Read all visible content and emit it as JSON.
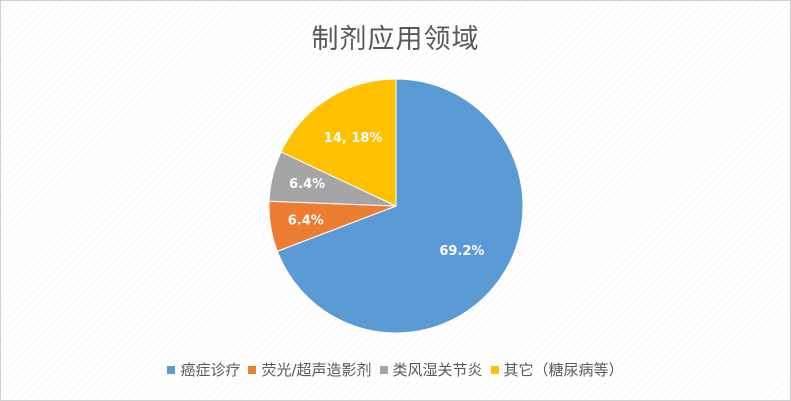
{
  "chart_data": {
    "type": "pie",
    "title": "制剂应用领域",
    "start_angle_deg": 0,
    "direction": "clockwise",
    "legend_position": "bottom",
    "slices": [
      {
        "name": "癌症诊疗",
        "value": 69.2,
        "label": "69.2%",
        "color": "#5B9BD5"
      },
      {
        "name": "荧光/超声造影剂",
        "value": 6.4,
        "label": "6.4%",
        "color": "#ED7D31"
      },
      {
        "name": "类风湿关节炎",
        "value": 6.4,
        "label": "6.4%",
        "color": "#A5A5A5"
      },
      {
        "name": "其它（糖尿病等）",
        "value": 18,
        "label": "14, 18%",
        "color": "#FFC000"
      }
    ]
  }
}
